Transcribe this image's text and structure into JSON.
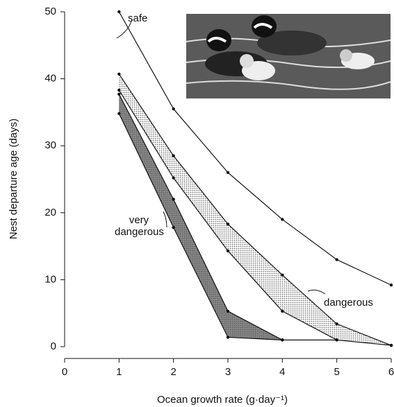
{
  "chart_data": {
    "type": "band",
    "xlabel": "Ocean growth rate (g·day⁻¹)",
    "ylabel": "Nest departure age (days)",
    "x": [
      1,
      2,
      3,
      4,
      5,
      6
    ],
    "xlim": [
      0,
      6
    ],
    "xticks": [
      0,
      1,
      2,
      3,
      4,
      5,
      6
    ],
    "ylim": [
      0,
      50
    ],
    "yticks": [
      0,
      10,
      20,
      30,
      40,
      50
    ],
    "series": [
      {
        "name": "safe",
        "color": "#111111",
        "values": [
          50,
          35.5,
          26,
          19,
          13,
          9.2
        ]
      },
      {
        "name": "dangerous",
        "color": "#cfcfcf",
        "upper": [
          40.7,
          28.5,
          18.3,
          10.7,
          3.4,
          0.2
        ],
        "lower": [
          38.3,
          25.2,
          14.3,
          5.3,
          1.0,
          0.2
        ]
      },
      {
        "name": "very dangerous",
        "color": "#4a4a4a",
        "upper": [
          37.7,
          22,
          5.3,
          1.0,
          null,
          null
        ],
        "lower": [
          34.8,
          17.8,
          1.4,
          1.0,
          1.0,
          null
        ]
      }
    ]
  }
}
